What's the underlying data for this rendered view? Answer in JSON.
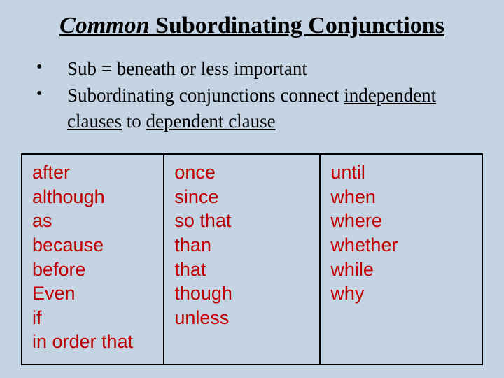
{
  "colors": {
    "background": "#c5d4e3",
    "title_text": "#000000",
    "bullet_text": "#000000",
    "table_border": "#000000",
    "word_text": "#c00000"
  },
  "typography": {
    "title_fontsize": 34,
    "title_family": "Times New Roman",
    "title_underline": true,
    "bullet_fontsize": 27,
    "bullet_family": "Times New Roman",
    "word_fontsize": 27,
    "word_family": "Arial"
  },
  "title": {
    "italic_part": "Common",
    "plain_part": " Subordinating Conjunctions"
  },
  "bullets": [
    {
      "prefix": "Sub = beneath or less important",
      "u1": "",
      "mid": "",
      "u2": "",
      "suffix": ""
    },
    {
      "prefix": "Subordinating conjunctions connect ",
      "u1": "independent clauses",
      "mid": " to ",
      "u2": "dependent clause",
      "suffix": ""
    }
  ],
  "table": {
    "type": "table",
    "columns": 3,
    "border_color": "#000000",
    "border_width": 2,
    "col1": [
      "after",
      "although",
      "as",
      "because",
      "before",
      "Even",
      "if",
      "in order that"
    ],
    "col2": [
      "once",
      "since",
      "so that",
      "than",
      "that",
      "though",
      "unless"
    ],
    "col3": [
      "until",
      "when",
      "where",
      "whether",
      "while",
      "why"
    ]
  }
}
